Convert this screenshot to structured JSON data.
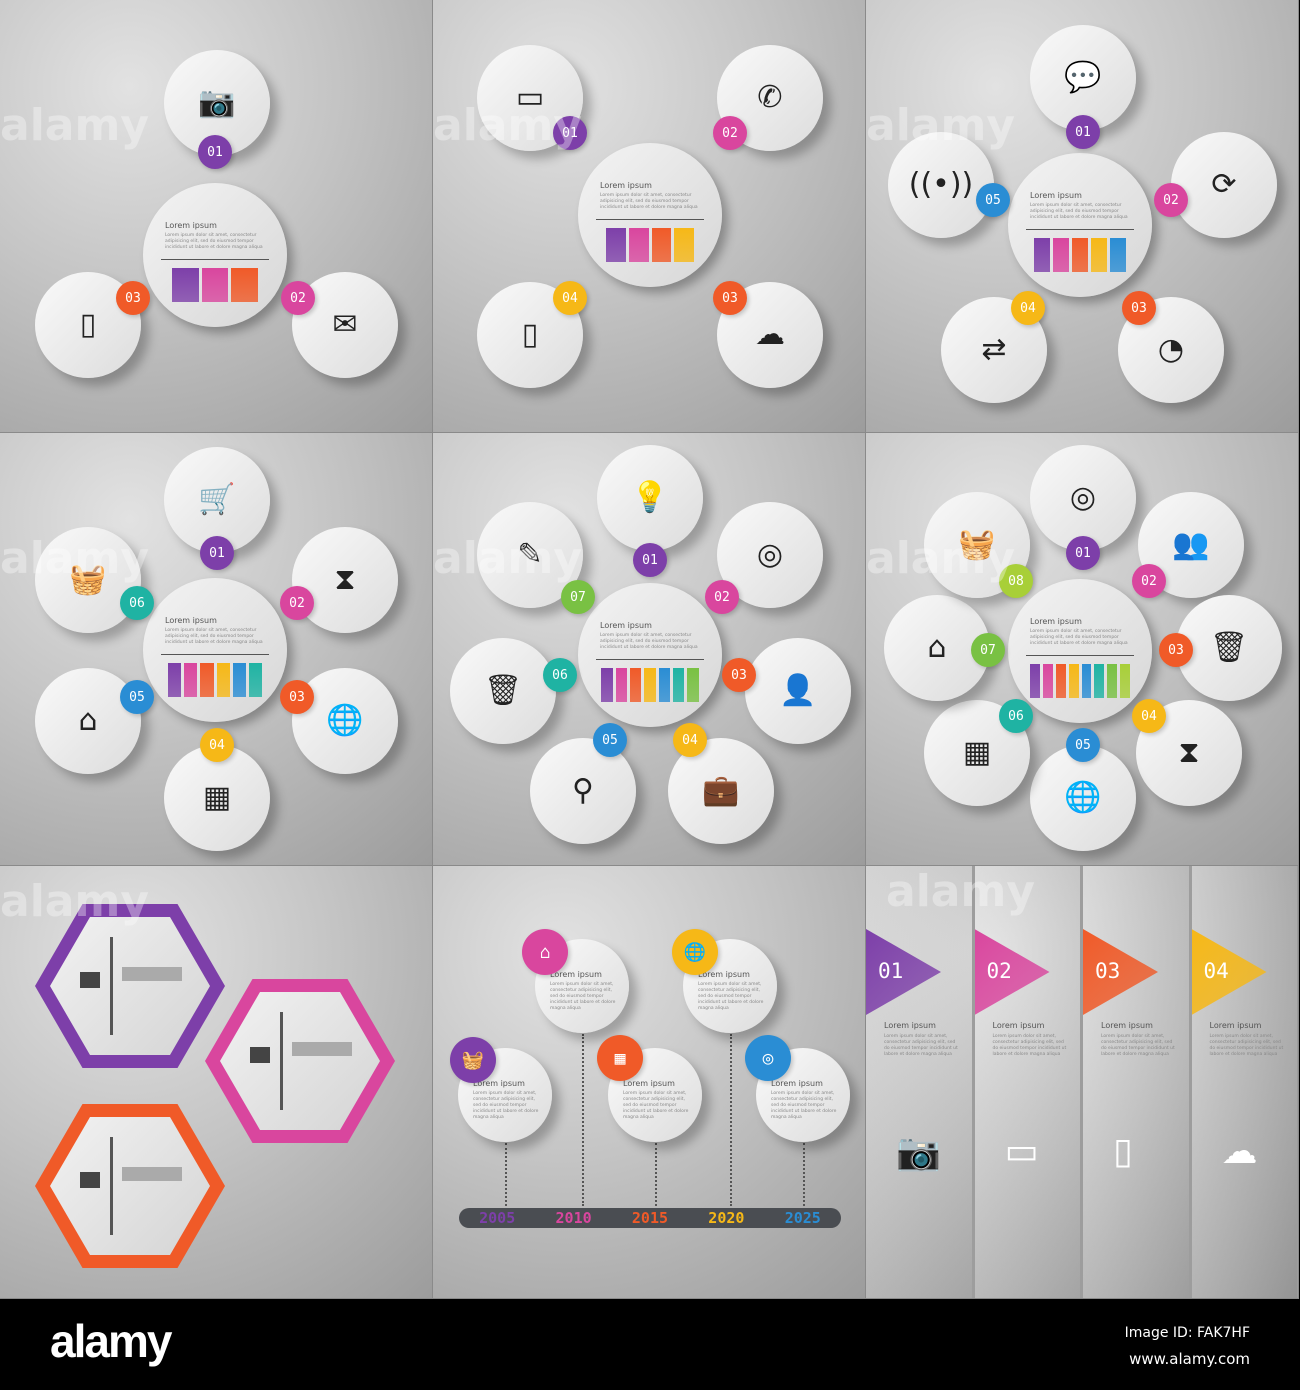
{
  "colors": {
    "01": "#7d3fa9",
    "02": "#d9469e",
    "03": "#f05a28",
    "04": "#f6b817",
    "05": "#2a8dd4",
    "06": "#1fb3a3",
    "07": "#79c143",
    "08": "#a8cf38"
  },
  "lorem": {
    "title": "Lorem ipsum",
    "text": "Lorem ipsum dolor sit amet, consectetur adipisicing elit, sed do eiusmod tempor incididunt ut labore et dolore magna aliqua"
  },
  "cycle_panels": [
    {
      "items": [
        {
          "num": "01",
          "icon": "camera-icon",
          "glyph": "📷"
        },
        {
          "num": "02",
          "icon": "mail-icon",
          "glyph": "✉"
        },
        {
          "num": "03",
          "icon": "smartphone-icon",
          "glyph": "▯"
        }
      ]
    },
    {
      "items": [
        {
          "num": "01",
          "icon": "battery-icon",
          "glyph": "▭"
        },
        {
          "num": "02",
          "icon": "phone-icon",
          "glyph": "✆"
        },
        {
          "num": "03",
          "icon": "cloud-icon",
          "glyph": "☁"
        },
        {
          "num": "04",
          "icon": "tablet-icon",
          "glyph": "▯"
        }
      ]
    },
    {
      "items": [
        {
          "num": "01",
          "icon": "chat-icon",
          "glyph": "💬"
        },
        {
          "num": "02",
          "icon": "refresh-icon",
          "glyph": "⟳"
        },
        {
          "num": "03",
          "icon": "rss-icon",
          "glyph": "◔"
        },
        {
          "num": "04",
          "icon": "arrows-icon",
          "glyph": "⇄"
        },
        {
          "num": "05",
          "icon": "wireless-icon",
          "glyph": "((•))"
        }
      ]
    },
    {
      "items": [
        {
          "num": "01",
          "icon": "cart-icon",
          "glyph": "🛒"
        },
        {
          "num": "02",
          "icon": "hourglass-icon",
          "glyph": "⧗"
        },
        {
          "num": "03",
          "icon": "globe-icon",
          "glyph": "🌐"
        },
        {
          "num": "04",
          "icon": "building-icon",
          "glyph": "▦"
        },
        {
          "num": "05",
          "icon": "home-icon",
          "glyph": "⌂"
        },
        {
          "num": "06",
          "icon": "basket-icon",
          "glyph": "🧺"
        }
      ]
    },
    {
      "items": [
        {
          "num": "01",
          "icon": "lightbulb-icon",
          "glyph": "💡"
        },
        {
          "num": "02",
          "icon": "target-icon",
          "glyph": "◎"
        },
        {
          "num": "03",
          "icon": "person-icon",
          "glyph": "👤"
        },
        {
          "num": "04",
          "icon": "suitcase-icon",
          "glyph": "💼"
        },
        {
          "num": "05",
          "icon": "search-icon",
          "glyph": "⚲"
        },
        {
          "num": "06",
          "icon": "trash-icon",
          "glyph": "🗑"
        },
        {
          "num": "07",
          "icon": "pencil-icon",
          "glyph": "✎"
        }
      ]
    },
    {
      "items": [
        {
          "num": "01",
          "icon": "target-icon",
          "glyph": "◎"
        },
        {
          "num": "02",
          "icon": "people-icon",
          "glyph": "👥"
        },
        {
          "num": "03",
          "icon": "trash-icon",
          "glyph": "🗑"
        },
        {
          "num": "04",
          "icon": "hourglass-icon",
          "glyph": "⧗"
        },
        {
          "num": "05",
          "icon": "globe-icon",
          "glyph": "🌐"
        },
        {
          "num": "06",
          "icon": "building-icon",
          "glyph": "▦"
        },
        {
          "num": "07",
          "icon": "home-icon",
          "glyph": "⌂"
        },
        {
          "num": "08",
          "icon": "basket-icon",
          "glyph": "🧺"
        }
      ]
    }
  ],
  "hexagons": [
    {
      "color": "#7d3fa9"
    },
    {
      "color": "#d9469e"
    },
    {
      "color": "#f05a28"
    }
  ],
  "timeline": [
    {
      "year": "2005",
      "color": "#7d3fa9",
      "icon": "basket-icon",
      "glyph": "🧺"
    },
    {
      "year": "2010",
      "color": "#d9469e",
      "icon": "home-icon",
      "glyph": "⌂"
    },
    {
      "year": "2015",
      "color": "#f05a28",
      "icon": "building-icon",
      "glyph": "▦"
    },
    {
      "year": "2020",
      "color": "#f6b817",
      "icon": "globe-icon",
      "glyph": "🌐"
    },
    {
      "year": "2025",
      "color": "#2a8dd4",
      "icon": "target-icon",
      "glyph": "◎"
    }
  ],
  "flags": [
    {
      "num": "01",
      "color": "#7d3fa9",
      "icon": "camera-icon",
      "glyph": "📷"
    },
    {
      "num": "02",
      "color": "#d9469e",
      "icon": "battery-icon",
      "glyph": "▭"
    },
    {
      "num": "03",
      "color": "#f05a28",
      "icon": "tablet-icon",
      "glyph": "▯"
    },
    {
      "num": "04",
      "color": "#f6b817",
      "icon": "cloud-icon",
      "glyph": "☁"
    }
  ],
  "watermark": "alamy",
  "footer": {
    "logo": "alamy",
    "image_id": "Image ID: FAK7HF",
    "url": "www.alamy.com"
  }
}
